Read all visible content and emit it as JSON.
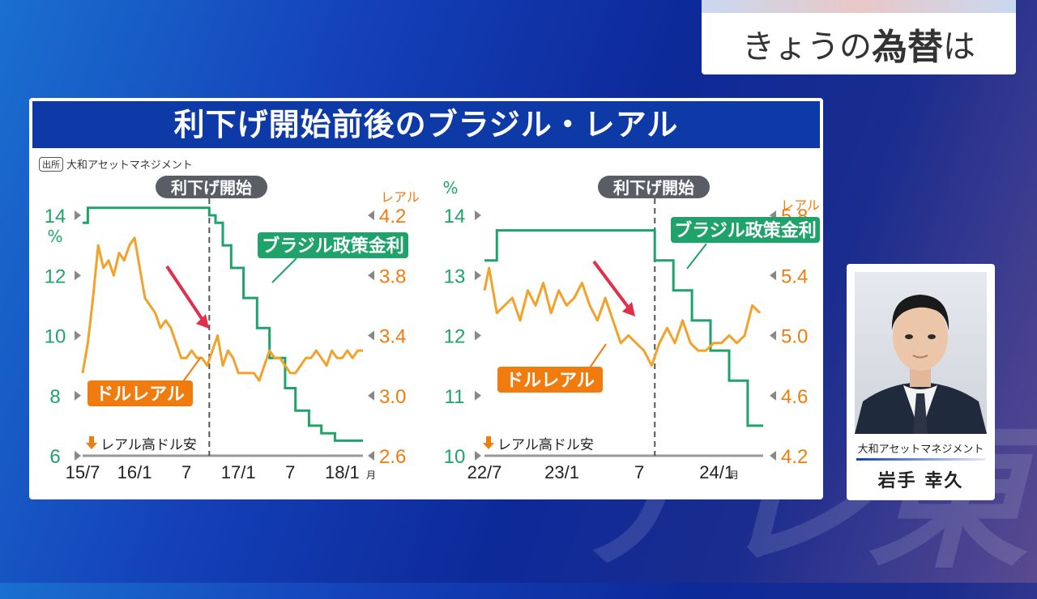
{
  "broadcast": {
    "topic_prefix": "きょうの",
    "topic_bold": "為替",
    "topic_suffix": "は",
    "watermark": "テレ東"
  },
  "panel": {
    "title": "利下げ開始前後のブラジル・レアル",
    "source_tag": "出所",
    "source": "大和アセットマネジメント"
  },
  "colors": {
    "policy_rate": "#1fa36a",
    "brl": "#f2a12a",
    "badge_orange": "#f07c10",
    "arrow_red": "#e0304a",
    "title_bg": "#0e3aa8",
    "marker_gray": "#555555"
  },
  "chart_data": [
    {
      "type": "line",
      "marker_label": "利下げ開始",
      "marker_x": 2016.72,
      "left_axis": {
        "unit": "%",
        "ticks": [
          "14",
          "12",
          "10",
          "8",
          "6"
        ],
        "range": [
          6,
          14
        ]
      },
      "right_axis": {
        "unit": "レアル",
        "ticks": [
          "4.2",
          "3.8",
          "3.4",
          "3.0",
          "2.6"
        ],
        "range": [
          2.6,
          4.2
        ]
      },
      "x_range": [
        2015.5,
        2018.2
      ],
      "x_ticks": [
        {
          "label": "15/7",
          "x": 2015.5
        },
        {
          "label": "16/1",
          "x": 2016.0
        },
        {
          "label": "7",
          "x": 2016.5
        },
        {
          "label": "17/1",
          "x": 2017.0
        },
        {
          "label": "7",
          "x": 2017.5
        },
        {
          "label": "18/1",
          "x": 2018.0
        }
      ],
      "x_unit": "月",
      "policy_label": "ブラジル政策金利",
      "fx_label": "ドルレアル",
      "note": "レアル高ドル安",
      "series": [
        {
          "name": "ブラジル政策金利",
          "axis": "left",
          "x": [
            2015.5,
            2015.55,
            2015.55,
            2016.72,
            2016.72,
            2016.78,
            2016.78,
            2016.85,
            2016.85,
            2016.93,
            2016.93,
            2017.05,
            2017.05,
            2017.18,
            2017.18,
            2017.3,
            2017.3,
            2017.45,
            2017.45,
            2017.55,
            2017.55,
            2017.68,
            2017.68,
            2017.8,
            2017.8,
            2017.93,
            2017.93,
            2018.1,
            2018.1,
            2018.2
          ],
          "values": [
            13.75,
            13.75,
            14.25,
            14.25,
            14.0,
            14.0,
            13.75,
            13.75,
            13.0,
            13.0,
            12.25,
            12.25,
            11.25,
            11.25,
            10.25,
            10.25,
            9.25,
            9.25,
            8.25,
            8.25,
            7.5,
            7.5,
            7.0,
            7.0,
            6.75,
            6.75,
            6.5,
            6.5,
            6.5,
            6.5
          ]
        },
        {
          "name": "ドルレアル",
          "axis": "right",
          "x": [
            2015.5,
            2015.55,
            2015.6,
            2015.65,
            2015.7,
            2015.75,
            2015.8,
            2015.85,
            2015.9,
            2015.95,
            2016.0,
            2016.05,
            2016.1,
            2016.15,
            2016.2,
            2016.25,
            2016.3,
            2016.35,
            2016.4,
            2016.45,
            2016.5,
            2016.55,
            2016.6,
            2016.65,
            2016.7,
            2016.75,
            2016.8,
            2016.85,
            2016.9,
            2016.95,
            2017.0,
            2017.05,
            2017.1,
            2017.15,
            2017.2,
            2017.25,
            2017.3,
            2017.35,
            2017.4,
            2017.45,
            2017.5,
            2017.55,
            2017.6,
            2017.65,
            2017.7,
            2017.75,
            2017.8,
            2017.85,
            2017.9,
            2017.95,
            2018.0,
            2018.05,
            2018.1,
            2018.15,
            2018.2
          ],
          "values": [
            3.15,
            3.35,
            3.65,
            4.0,
            3.85,
            3.9,
            3.8,
            3.95,
            3.9,
            4.0,
            4.05,
            3.85,
            3.65,
            3.6,
            3.55,
            3.45,
            3.5,
            3.45,
            3.35,
            3.25,
            3.25,
            3.3,
            3.25,
            3.25,
            3.2,
            3.3,
            3.4,
            3.2,
            3.3,
            3.25,
            3.15,
            3.15,
            3.15,
            3.15,
            3.1,
            3.2,
            3.3,
            3.25,
            3.25,
            3.2,
            3.15,
            3.15,
            3.2,
            3.25,
            3.25,
            3.3,
            3.25,
            3.2,
            3.3,
            3.25,
            3.25,
            3.3,
            3.25,
            3.3,
            3.3
          ]
        }
      ]
    },
    {
      "type": "line",
      "marker_label": "利下げ開始",
      "marker_x": 2023.6,
      "left_axis": {
        "unit": "%",
        "ticks": [
          "14",
          "13",
          "12",
          "11",
          "10"
        ],
        "range": [
          10,
          14
        ]
      },
      "right_axis": {
        "unit": "レアル",
        "ticks": [
          "5.8",
          "5.4",
          "5.0",
          "4.6",
          "4.2"
        ],
        "range": [
          4.2,
          5.8
        ]
      },
      "x_range": [
        2022.5,
        2024.3
      ],
      "x_ticks": [
        {
          "label": "22/7",
          "x": 2022.5
        },
        {
          "label": "23/1",
          "x": 2023.0
        },
        {
          "label": "7",
          "x": 2023.5
        },
        {
          "label": "24/1",
          "x": 2024.0
        }
      ],
      "x_unit": "月",
      "policy_label": "ブラジル政策金利",
      "fx_label": "ドルレアル",
      "note": "レアル高ドル安",
      "series": [
        {
          "name": "ブラジル政策金利",
          "axis": "left",
          "x": [
            2022.5,
            2022.58,
            2022.58,
            2023.6,
            2023.6,
            2023.72,
            2023.72,
            2023.84,
            2023.84,
            2023.96,
            2023.96,
            2024.08,
            2024.08,
            2024.2,
            2024.2,
            2024.3
          ],
          "values": [
            13.25,
            13.25,
            13.75,
            13.75,
            13.25,
            13.25,
            12.75,
            12.75,
            12.25,
            12.25,
            11.75,
            11.75,
            11.25,
            11.25,
            10.5,
            10.5
          ],
          "flat_segment_end": 2024.04
        },
        {
          "name": "ドルレアル",
          "axis": "right",
          "x": [
            2022.5,
            2022.53,
            2022.58,
            2022.63,
            2022.68,
            2022.73,
            2022.78,
            2022.83,
            2022.88,
            2022.93,
            2022.98,
            2023.03,
            2023.08,
            2023.13,
            2023.18,
            2023.23,
            2023.28,
            2023.33,
            2023.38,
            2023.43,
            2023.48,
            2023.53,
            2023.58,
            2023.63,
            2023.68,
            2023.73,
            2023.78,
            2023.83,
            2023.88,
            2023.93,
            2023.98,
            2024.03,
            2024.08,
            2024.13,
            2024.18,
            2024.23,
            2024.28
          ],
          "values": [
            5.3,
            5.45,
            5.15,
            5.2,
            5.25,
            5.1,
            5.3,
            5.2,
            5.35,
            5.15,
            5.3,
            5.2,
            5.25,
            5.35,
            5.2,
            5.1,
            5.25,
            5.1,
            4.95,
            5.0,
            4.95,
            4.9,
            4.8,
            4.95,
            5.05,
            4.95,
            5.1,
            4.95,
            4.9,
            4.9,
            4.95,
            4.95,
            5.0,
            4.95,
            5.0,
            5.2,
            5.15
          ]
        }
      ]
    }
  ],
  "presenter": {
    "org": "大和アセットマネジメント",
    "name": "岩手 幸久"
  }
}
